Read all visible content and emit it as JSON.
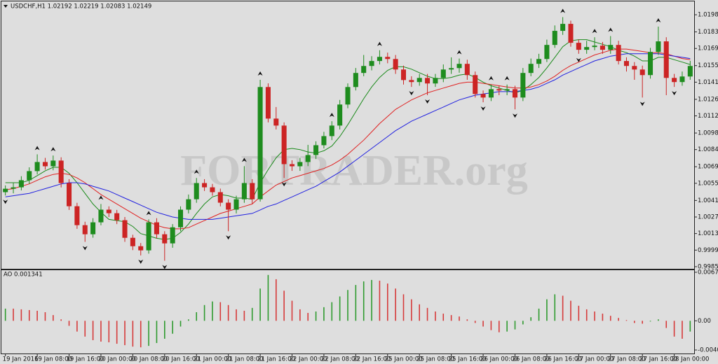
{
  "chart_data": [
    {
      "type": "candlestick",
      "title": "USDCHF,H1 1.02192 1.02219 1.02083 1.02149",
      "watermark": "FORTRADER.org",
      "bull_color": "#1e8c1e",
      "bear_color": "#cc2424",
      "arrow_color": "#111111",
      "ylim": [
        0.99832,
        1.02093
      ],
      "yticks": [
        {
          "value": 1.0198,
          "label": "1.01980"
        },
        1.01835,
        1.01695,
        {
          "value": 1.0155,
          "label": "1.01550"
        },
        {
          "value": 1.0141,
          "label": "1.01410"
        },
        1.01265,
        1.01125,
        {
          "value": 1.0098,
          "label": "1.00980"
        },
        {
          "value": 1.0084,
          "label": "1.00840"
        },
        1.00695,
        1.00555,
        {
          "value": 1.0041,
          "label": "1.00410"
        },
        {
          "value": 1.0027,
          "label": "1.00270"
        },
        {
          "value": 1.0013,
          "label": "1.00130"
        },
        {
          "value": 0.9999,
          "label": "0.99990"
        },
        {
          "value": 0.9985,
          "label": "0.99850"
        }
      ],
      "open": [
        1.0048,
        1.00509,
        1.00521,
        1.00581,
        1.00658,
        1.00735,
        1.00699,
        1.00747,
        1.00557,
        1.00361,
        1.00201,
        1.00124,
        1.00225,
        1.00332,
        1.00302,
        1.00243,
        1.00094,
        1.00023,
        0.99988,
        1.00225,
        1.00124,
        1.00047,
        1.00183,
        1.00332,
        1.0042,
        1.00557,
        1.00521,
        1.0048,
        1.00391,
        1.00332,
        1.0042,
        1.00557,
        1.0042,
        1.01369,
        1.01102,
        1.01043,
        1.00717,
        1.00699,
        1.00735,
        1.00794,
        1.00877,
        1.00954,
        1.01043,
        1.01221,
        1.01369,
        1.01488,
        1.01547,
        1.01589,
        1.01624,
        1.01606,
        1.01517,
        1.01428,
        1.01411,
        1.01446,
        1.01399,
        1.01446,
        1.01517,
        1.01529,
        1.01565,
        1.0147,
        1.0131,
        1.0128,
        1.01351,
        1.0134,
        1.01351,
        1.0128,
        1.01488,
        1.01565,
        1.01606,
        1.01725,
        1.01844,
        1.01903,
        1.01743,
        1.01684,
        1.01707,
        1.01719,
        1.01684,
        1.01725,
        1.01589,
        1.01547,
        1.01517,
        1.0147,
        1.01666,
        1.01755,
        1.01446,
        1.01411,
        1.01458
      ],
      "high": [
        1.00537,
        1.0056,
        1.00615,
        1.0069,
        1.008,
        1.0077,
        1.0079,
        1.00775,
        1.0059,
        1.0039,
        1.0023,
        1.0026,
        1.0038,
        1.0036,
        1.0033,
        1.0027,
        1.0012,
        1.0005,
        1.0025,
        1.0026,
        1.0015,
        1.0021,
        1.0036,
        1.0046,
        1.006,
        1.0059,
        1.0055,
        1.0051,
        1.0042,
        1.0045,
        1.007,
        1.0059,
        1.0143,
        1.014,
        1.012,
        1.0107,
        1.0075,
        1.0077,
        1.0088,
        1.0091,
        1.0099,
        1.0108,
        1.0126,
        1.014,
        1.0153,
        1.0164,
        1.0163,
        1.0168,
        1.0166,
        1.0164,
        1.0155,
        1.0146,
        1.0148,
        1.0148,
        1.0148,
        1.0156,
        1.0162,
        1.0161,
        1.016,
        1.015,
        1.0134,
        1.0139,
        1.0138,
        1.0139,
        1.0138,
        1.0153,
        1.0161,
        1.0165,
        1.0177,
        1.0189,
        1.0196,
        1.0193,
        1.0177,
        1.0176,
        1.0179,
        1.0175,
        1.018,
        1.0176,
        1.0162,
        1.0158,
        1.0155,
        1.017,
        1.0188,
        1.0179,
        1.0148,
        1.015,
        1.0159
      ],
      "low": [
        1.00452,
        1.0047,
        1.00495,
        1.0055,
        1.0063,
        1.0067,
        1.00665,
        1.0052,
        1.0033,
        1.0017,
        1.0006,
        1.00095,
        1.002,
        1.0027,
        1.0021,
        1.0006,
        0.9999,
        0.99945,
        0.9996,
        1.0009,
        0.999,
        1.0001,
        1.0015,
        1.003,
        1.0039,
        1.0049,
        1.0045,
        1.0036,
        1.0015,
        1.003,
        1.0039,
        1.0038,
        1.004,
        1.0107,
        1.0101,
        1.006,
        1.0066,
        1.0066,
        1.007,
        1.0076,
        1.0085,
        1.0092,
        1.0101,
        1.0119,
        1.0134,
        1.0146,
        1.0151,
        1.0156,
        1.0157,
        1.0148,
        1.0139,
        1.0137,
        1.0138,
        1.013,
        1.0137,
        1.0141,
        1.0148,
        1.0149,
        1.0143,
        1.0128,
        1.0124,
        1.0125,
        1.013,
        1.013,
        1.0118,
        1.0125,
        1.0146,
        1.0153,
        1.0158,
        1.017,
        1.0181,
        1.0171,
        1.0165,
        1.0165,
        1.0168,
        1.0165,
        1.0165,
        1.0156,
        1.015,
        1.0143,
        1.0128,
        1.0144,
        1.0164,
        1.013,
        1.0137,
        1.0138,
        1.0143
      ],
      "close": [
        1.00509,
        1.00521,
        1.00581,
        1.00658,
        1.00735,
        1.00699,
        1.00747,
        1.00557,
        1.00361,
        1.00201,
        1.00124,
        1.00225,
        1.00332,
        1.00302,
        1.00243,
        1.00094,
        1.00023,
        0.99988,
        1.00225,
        1.00124,
        1.00047,
        1.00183,
        1.00332,
        1.0042,
        1.00557,
        1.00521,
        1.0048,
        1.00391,
        1.00332,
        1.0042,
        1.00557,
        1.0042,
        1.01369,
        1.01102,
        1.01043,
        1.00717,
        1.00699,
        1.00735,
        1.00794,
        1.00877,
        1.00954,
        1.01043,
        1.01221,
        1.01369,
        1.01488,
        1.01547,
        1.01589,
        1.01624,
        1.01606,
        1.01517,
        1.01428,
        1.01411,
        1.01446,
        1.01399,
        1.01446,
        1.01517,
        1.01529,
        1.01565,
        1.0147,
        1.0131,
        1.0128,
        1.01351,
        1.0134,
        1.01351,
        1.0128,
        1.01488,
        1.01565,
        1.01606,
        1.01725,
        1.01844,
        1.01903,
        1.01743,
        1.01684,
        1.01707,
        1.01719,
        1.01684,
        1.01725,
        1.01589,
        1.01547,
        1.01517,
        1.0147,
        1.01666,
        1.01755,
        1.01446,
        1.01411,
        1.01458,
        1.01547
      ],
      "series": [
        {
          "color": "#1a8a1a",
          "values": [
            1.0056,
            1.0056,
            1.0056,
            1.0058,
            1.0062,
            1.0066,
            1.0069,
            1.0069,
            1.0064,
            1.0056,
            1.0047,
            1.0038,
            1.0031,
            1.0025,
            1.0024,
            1.0023,
            1.0019,
            1.0013,
            1.0011,
            1.0009,
            1.0008,
            1.0009,
            1.0014,
            1.0021,
            1.003,
            1.0038,
            1.0044,
            1.0046,
            1.0045,
            1.0043,
            1.0043,
            1.0042,
            1.0056,
            1.0067,
            1.0077,
            1.0084,
            1.0085,
            1.0084,
            1.0082,
            1.0081,
            1.0083,
            1.0087,
            1.0095,
            1.0105,
            1.0116,
            1.0127,
            1.0137,
            1.0145,
            1.0151,
            1.0154,
            1.0154,
            1.0152,
            1.0149,
            1.0146,
            1.0144,
            1.0144,
            1.0145,
            1.0147,
            1.0148,
            1.0145,
            1.0141,
            1.0138,
            1.0136,
            1.0134,
            1.0132,
            1.0134,
            1.0139,
            1.0145,
            1.0153,
            1.0162,
            1.0171,
            1.0176,
            1.0177,
            1.0177,
            1.0175,
            1.0173,
            1.0171,
            1.0168,
            1.0166,
            1.0163,
            1.0159,
            1.0159,
            1.0162,
            1.0162,
            1.016,
            1.0158,
            1.0156
          ]
        },
        {
          "color": "#e02020",
          "values": [
            1.005,
            1.0051,
            1.0053,
            1.0055,
            1.0058,
            1.0061,
            1.0063,
            1.0064,
            1.0063,
            1.006,
            1.0056,
            1.0051,
            1.0046,
            1.0042,
            1.0038,
            1.0034,
            1.003,
            1.0026,
            1.0023,
            1.002,
            1.0018,
            1.0017,
            1.0017,
            1.0018,
            1.0021,
            1.0024,
            1.0027,
            1.003,
            1.0032,
            1.0034,
            1.0036,
            1.0038,
            1.0044,
            1.0049,
            1.0054,
            1.0057,
            1.006,
            1.0062,
            1.0064,
            1.0066,
            1.0068,
            1.0071,
            1.0075,
            1.008,
            1.0086,
            1.0092,
            1.0099,
            1.0106,
            1.0112,
            1.0118,
            1.0122,
            1.0126,
            1.0129,
            1.0132,
            1.0134,
            1.0136,
            1.0138,
            1.014,
            1.0141,
            1.0141,
            1.014,
            1.0139,
            1.0138,
            1.0137,
            1.0136,
            1.0136,
            1.0137,
            1.0139,
            1.0142,
            1.0146,
            1.0151,
            1.0155,
            1.0158,
            1.0161,
            1.0164,
            1.0166,
            1.0168,
            1.0169,
            1.0169,
            1.0168,
            1.0167,
            1.0166,
            1.0166,
            1.0165,
            1.0163,
            1.0161,
            1.016
          ]
        },
        {
          "color": "#2020e0",
          "values": [
            1.0044,
            1.0045,
            1.0046,
            1.0047,
            1.0049,
            1.0051,
            1.0053,
            1.0055,
            1.0056,
            1.0056,
            1.0055,
            1.0053,
            1.0051,
            1.0049,
            1.0046,
            1.0043,
            1.004,
            1.0037,
            1.0034,
            1.0031,
            1.0029,
            1.0027,
            1.0026,
            1.0025,
            1.0025,
            1.0025,
            1.0025,
            1.0026,
            1.0027,
            1.0028,
            1.0029,
            1.003,
            1.0033,
            1.0036,
            1.0038,
            1.0041,
            1.0044,
            1.0047,
            1.005,
            1.0053,
            1.0057,
            1.0061,
            1.0065,
            1.007,
            1.0075,
            1.008,
            1.0085,
            1.009,
            1.0095,
            1.01,
            1.0104,
            1.0108,
            1.0111,
            1.0114,
            1.0117,
            1.012,
            1.0123,
            1.0126,
            1.0128,
            1.013,
            1.0131,
            1.0132,
            1.0133,
            1.0133,
            1.0133,
            1.0134,
            1.0135,
            1.0137,
            1.014,
            1.0143,
            1.0147,
            1.015,
            1.0153,
            1.0156,
            1.0159,
            1.0161,
            1.0163,
            1.0164,
            1.0165,
            1.0165,
            1.0165,
            1.0165,
            1.0165,
            1.0164,
            1.0163,
            1.0162,
            1.0161
          ]
        }
      ],
      "fractals_up": [
        4,
        6,
        12,
        18,
        24,
        30,
        32,
        41,
        47,
        57,
        61,
        63,
        70,
        74,
        76,
        82
      ],
      "fractals_down": [
        0,
        10,
        17,
        20,
        28,
        35,
        51,
        53,
        60,
        64,
        72,
        80,
        84
      ]
    },
    {
      "type": "bar",
      "title": "AO 0.001341",
      "up_color": "#2e9a2e",
      "down_color": "#d63a3a",
      "ylim": [
        -0.00456,
        0.00706
      ],
      "yticks": [
        0.006771,
        {
          "value": 0,
          "label": "0.00"
        },
        -0.004071
      ],
      "values": [
        0.0017,
        0.0017,
        0.0016,
        0.0015,
        0.0014,
        0.0012,
        0.0008,
        0.0002,
        -0.0007,
        -0.0015,
        -0.0022,
        -0.0027,
        -0.0029,
        -0.003,
        -0.0032,
        -0.0034,
        -0.0036,
        -0.0037,
        -0.0035,
        -0.0031,
        -0.0025,
        -0.0018,
        -0.0008,
        0.0002,
        0.0012,
        0.0022,
        0.0027,
        0.0026,
        0.0022,
        0.0016,
        0.0014,
        0.0018,
        0.0045,
        0.0064,
        0.0058,
        0.0042,
        0.0028,
        0.0016,
        0.0011,
        0.0013,
        0.0019,
        0.0026,
        0.0034,
        0.0043,
        0.005,
        0.0055,
        0.0057,
        0.0056,
        0.0052,
        0.0045,
        0.0037,
        0.003,
        0.0023,
        0.0018,
        0.0013,
        0.001,
        0.0008,
        0.0006,
        0.0002,
        -0.0003,
        -0.0008,
        -0.0013,
        -0.0016,
        -0.0015,
        -0.0012,
        -0.0005,
        0.0005,
        0.0017,
        0.003,
        0.0037,
        0.0035,
        0.0028,
        0.0021,
        0.0016,
        0.0013,
        0.001,
        0.0007,
        0.0004,
        0.0001,
        -0.0003,
        -0.0004,
        -0.0001,
        0.0002,
        -0.001,
        -0.0022,
        -0.0025,
        -0.0015
      ],
      "xticks": [
        {
          "value": 0,
          "label": "19 Jan 2016"
        },
        {
          "value": 4,
          "label": "19 Jan 08:00"
        },
        {
          "value": 8,
          "label": "19 Jan 16:00"
        },
        {
          "value": 12,
          "label": "20 Jan 00:00"
        },
        {
          "value": 16,
          "label": "20 Jan 08:00"
        },
        {
          "value": 20,
          "label": "20 Jan 16:00"
        },
        {
          "value": 24,
          "label": "21 Jan 00:00"
        },
        {
          "value": 28,
          "label": "21 Jan 08:00"
        },
        {
          "value": 32,
          "label": "21 Jan 16:00"
        },
        {
          "value": 36,
          "label": "22 Jan 00:00"
        },
        {
          "value": 40,
          "label": "22 Jan 08:00"
        },
        {
          "value": 44,
          "label": "22 Jan 16:00"
        },
        {
          "value": 48,
          "label": "25 Jan 00:00"
        },
        {
          "value": 52,
          "label": "25 Jan 08:00"
        },
        {
          "value": 56,
          "label": "25 Jan 16:00"
        },
        {
          "value": 60,
          "label": "26 Jan 00:00"
        },
        {
          "value": 64,
          "label": "26 Jan 08:00"
        },
        {
          "value": 68,
          "label": "26 Jan 16:00"
        },
        {
          "value": 72,
          "label": "27 Jan 00:00"
        },
        {
          "value": 76,
          "label": "27 Jan 08:00"
        },
        {
          "value": 80,
          "label": "27 Jan 16:00"
        },
        {
          "value": 84,
          "label": "28 Jan 00:00"
        }
      ]
    }
  ]
}
